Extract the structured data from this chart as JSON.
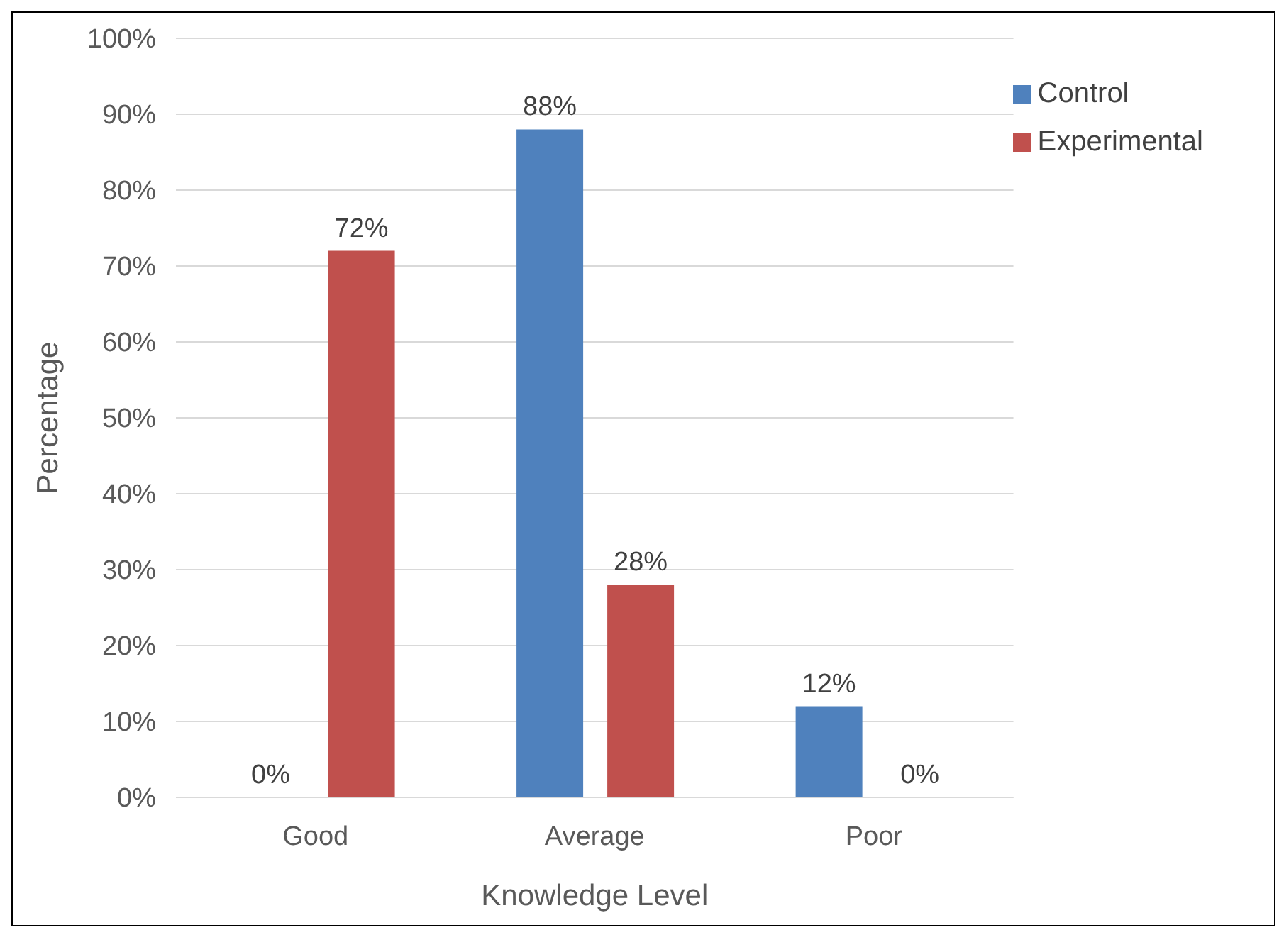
{
  "chart_data": {
    "type": "bar",
    "xlabel": "Knowledge Level",
    "ylabel": "Percentage",
    "categories": [
      "Good",
      "Average",
      "Poor"
    ],
    "series": [
      {
        "name": "Control",
        "color": "#4f81bd",
        "values": [
          0,
          88,
          12
        ],
        "value_labels": [
          "0%",
          "88%",
          "12%"
        ]
      },
      {
        "name": "Experimental",
        "color": "#c0504d",
        "values": [
          72,
          28,
          0
        ],
        "value_labels": [
          "72%",
          "28%",
          "0%"
        ]
      }
    ],
    "ylim": [
      0,
      100
    ],
    "yticks": [
      {
        "value": 0,
        "label": "0%"
      },
      {
        "value": 10,
        "label": "10%"
      },
      {
        "value": 20,
        "label": "20%"
      },
      {
        "value": 30,
        "label": "30%"
      },
      {
        "value": 40,
        "label": "40%"
      },
      {
        "value": 50,
        "label": "50%"
      },
      {
        "value": 60,
        "label": "60%"
      },
      {
        "value": 70,
        "label": "70%"
      },
      {
        "value": 80,
        "label": "80%"
      },
      {
        "value": 90,
        "label": "90%"
      },
      {
        "value": 100,
        "label": "100%"
      }
    ],
    "grid": "y",
    "legend": "top right"
  }
}
